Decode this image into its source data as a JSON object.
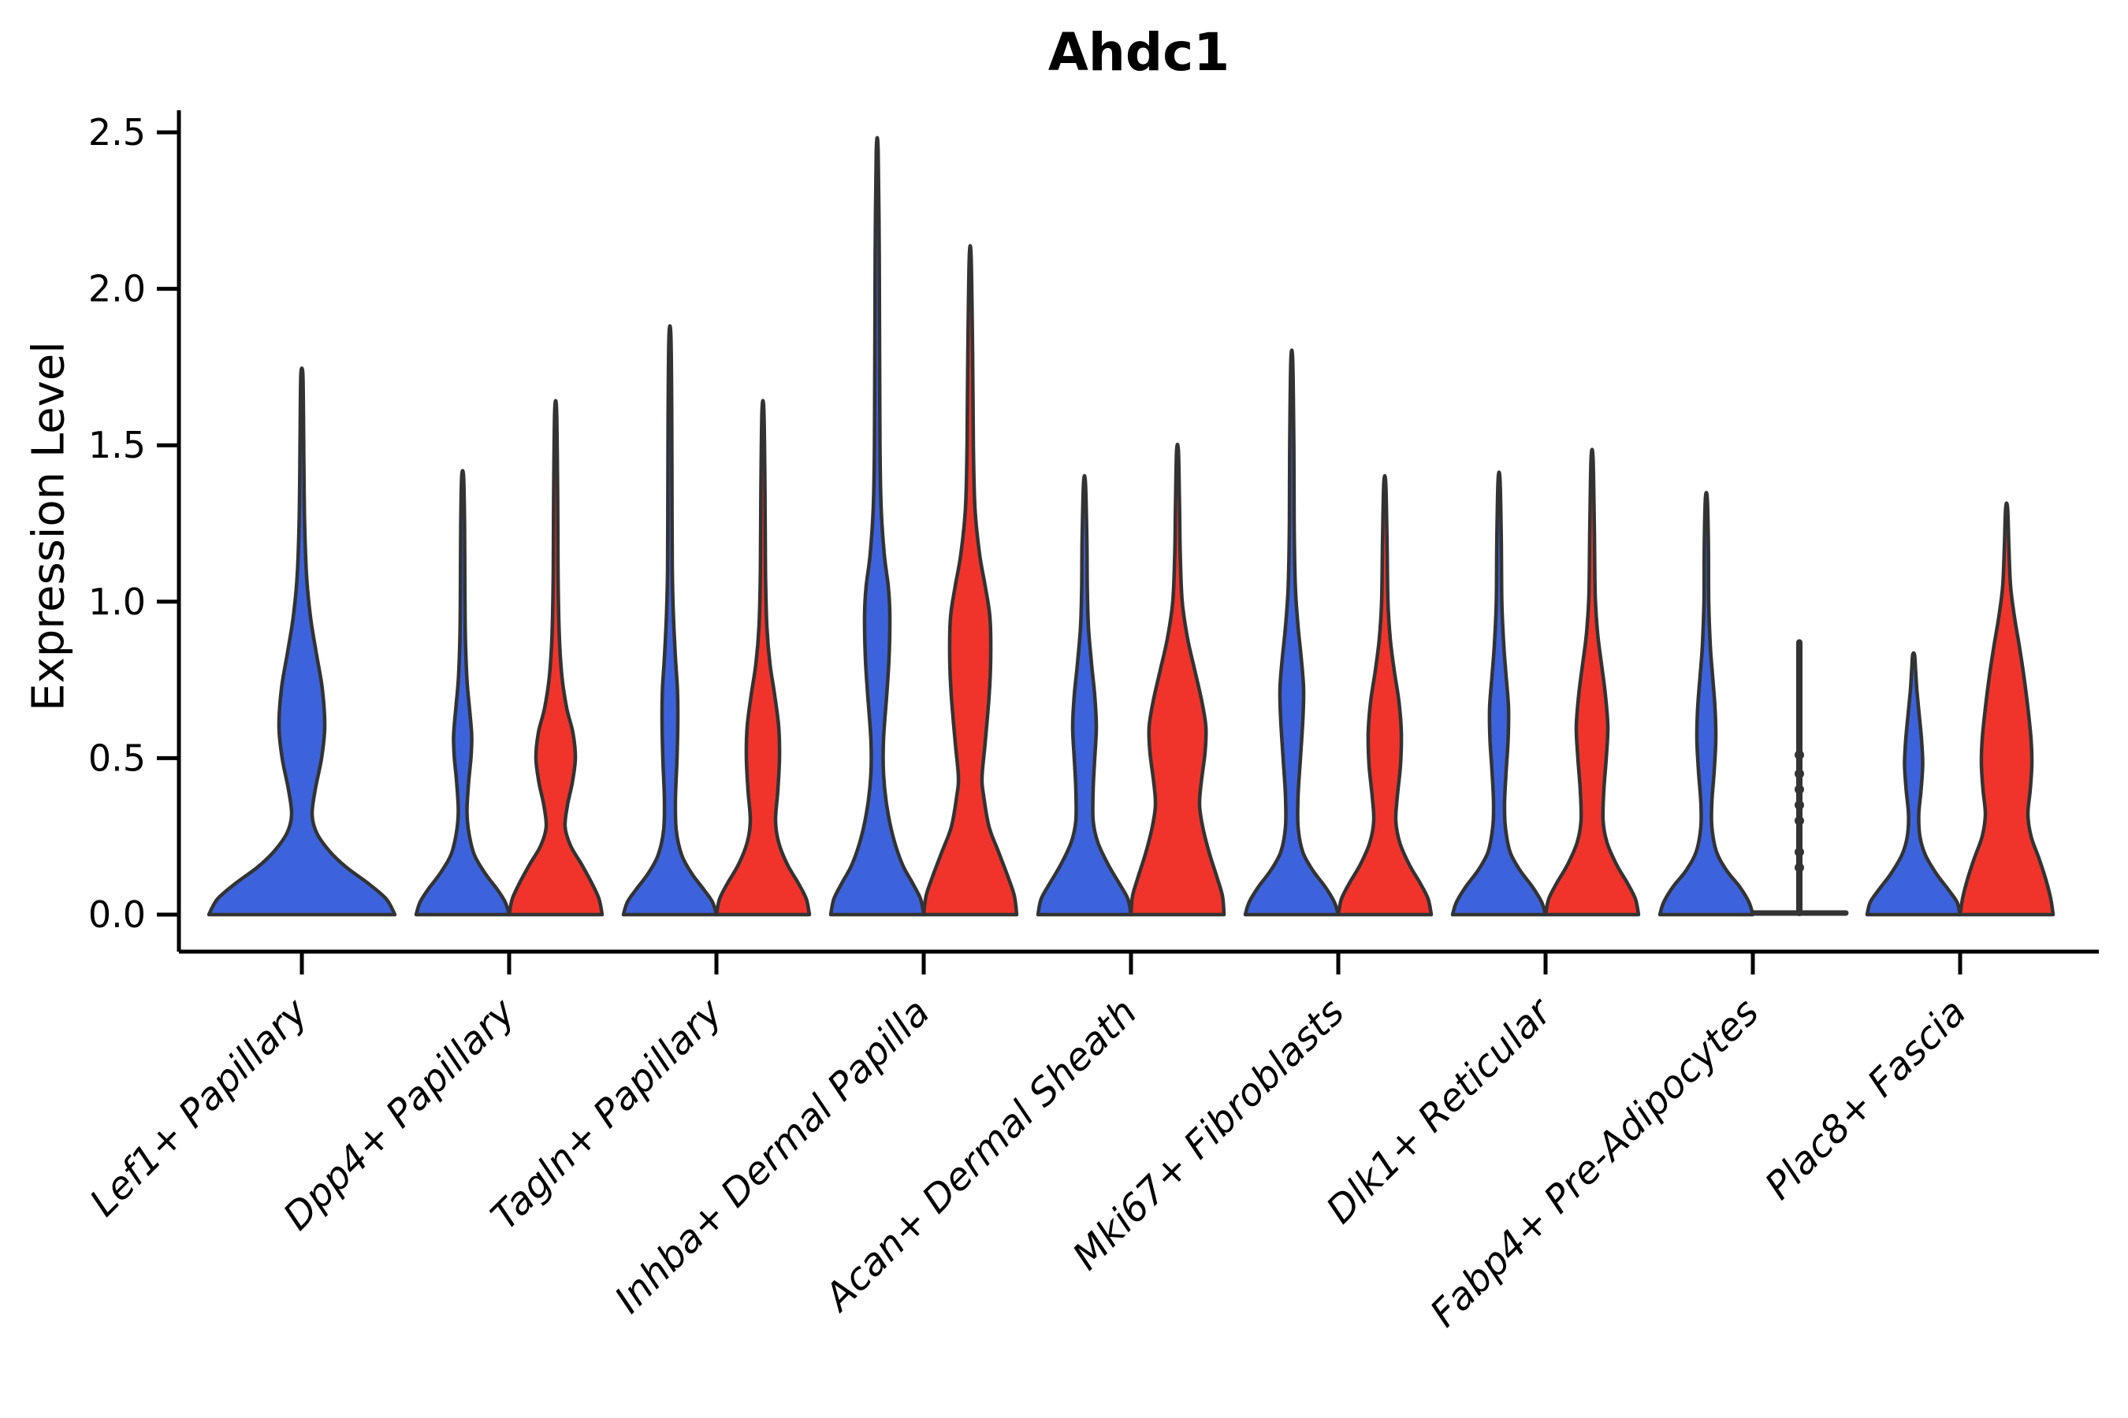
{
  "chart_data": {
    "type": "violin",
    "title": "Ahdc1",
    "ylabel": "Expression Level",
    "xlabel": "",
    "yticks": [
      0.0,
      0.5,
      1.0,
      1.5,
      2.0,
      2.5
    ],
    "ylim": [
      0,
      2.56
    ],
    "grid": false,
    "legend_position": "none",
    "categories": [
      "Lef1+ Papillary",
      "Dpp4+ Papillary",
      "Tagln+ Papillary",
      "Inhba+ Dermal Papilla",
      "Acan+ Dermal Sheath",
      "Mki67+ Fibroblasts",
      "Dlk1+ Reticular",
      "Fabp4+ Pre-Adipocytes",
      "Plac8+ Fascia"
    ],
    "colors": {
      "blue": "#3D63DC",
      "red": "#F1342B",
      "edge": "#333333",
      "axis": "#000000"
    },
    "series": [
      {
        "category_index": 0,
        "split": "blue",
        "side": "center",
        "max_value": 1.73,
        "profile": [
          [
            0,
            118
          ],
          [
            0.05,
            107
          ],
          [
            0.1,
            84
          ],
          [
            0.15,
            57
          ],
          [
            0.2,
            36
          ],
          [
            0.26,
            19
          ],
          [
            0.32,
            13
          ],
          [
            0.4,
            17
          ],
          [
            0.5,
            25
          ],
          [
            0.6,
            29
          ],
          [
            0.72,
            26
          ],
          [
            0.84,
            18
          ],
          [
            0.95,
            11
          ],
          [
            1.08,
            6
          ],
          [
            1.25,
            3.5
          ],
          [
            1.45,
            2.5
          ],
          [
            1.6,
            2
          ],
          [
            1.73,
            1.2
          ]
        ]
      },
      {
        "category_index": 1,
        "split": "blue",
        "side": "left",
        "max_value": 1.4,
        "profile": [
          [
            0,
            59
          ],
          [
            0.04,
            54
          ],
          [
            0.08,
            44
          ],
          [
            0.13,
            29
          ],
          [
            0.19,
            15
          ],
          [
            0.26,
            8
          ],
          [
            0.33,
            5.5
          ],
          [
            0.42,
            7.5
          ],
          [
            0.5,
            10.5
          ],
          [
            0.57,
            11.5
          ],
          [
            0.65,
            9
          ],
          [
            0.75,
            5.5
          ],
          [
            0.88,
            3.5
          ],
          [
            1.05,
            2.8
          ],
          [
            1.25,
            2.4
          ],
          [
            1.4,
            1.2
          ]
        ]
      },
      {
        "category_index": 1,
        "split": "red",
        "side": "right",
        "max_value": 1.61,
        "profile": [
          [
            0,
            59
          ],
          [
            0.05,
            55
          ],
          [
            0.1,
            46
          ],
          [
            0.16,
            33
          ],
          [
            0.22,
            19
          ],
          [
            0.28,
            12
          ],
          [
            0.35,
            15
          ],
          [
            0.42,
            21
          ],
          [
            0.5,
            25
          ],
          [
            0.58,
            22
          ],
          [
            0.66,
            14
          ],
          [
            0.76,
            8
          ],
          [
            0.9,
            4.5
          ],
          [
            1.1,
            3
          ],
          [
            1.35,
            2.5
          ],
          [
            1.61,
            1.2
          ]
        ]
      },
      {
        "category_index": 2,
        "split": "blue",
        "side": "left",
        "max_value": 1.85,
        "profile": [
          [
            0,
            59
          ],
          [
            0.04,
            54
          ],
          [
            0.08,
            43
          ],
          [
            0.13,
            28
          ],
          [
            0.19,
            15
          ],
          [
            0.27,
            8
          ],
          [
            0.37,
            7
          ],
          [
            0.5,
            9
          ],
          [
            0.62,
            10
          ],
          [
            0.72,
            9.5
          ],
          [
            0.82,
            7
          ],
          [
            0.95,
            4.5
          ],
          [
            1.1,
            3
          ],
          [
            1.35,
            2.6
          ],
          [
            1.6,
            2.3
          ],
          [
            1.85,
            1.2
          ]
        ]
      },
      {
        "category_index": 2,
        "split": "red",
        "side": "right",
        "max_value": 1.61,
        "profile": [
          [
            0,
            59
          ],
          [
            0.05,
            55
          ],
          [
            0.1,
            45
          ],
          [
            0.16,
            31
          ],
          [
            0.23,
            20
          ],
          [
            0.3,
            16
          ],
          [
            0.4,
            19
          ],
          [
            0.5,
            21
          ],
          [
            0.6,
            20
          ],
          [
            0.7,
            15
          ],
          [
            0.8,
            9
          ],
          [
            0.92,
            5
          ],
          [
            1.1,
            3.2
          ],
          [
            1.35,
            2.6
          ],
          [
            1.61,
            1.2
          ]
        ]
      },
      {
        "category_index": 3,
        "split": "blue",
        "side": "left",
        "max_value": 2.44,
        "profile": [
          [
            0,
            59
          ],
          [
            0.05,
            55
          ],
          [
            0.1,
            45
          ],
          [
            0.16,
            32
          ],
          [
            0.25,
            20
          ],
          [
            0.35,
            12
          ],
          [
            0.45,
            8
          ],
          [
            0.56,
            8
          ],
          [
            0.7,
            12
          ],
          [
            0.82,
            15
          ],
          [
            0.96,
            16
          ],
          [
            1.05,
            14
          ],
          [
            1.15,
            9
          ],
          [
            1.3,
            5
          ],
          [
            1.5,
            3.5
          ],
          [
            1.8,
            3
          ],
          [
            2.1,
            2.6
          ],
          [
            2.44,
            1.2
          ]
        ]
      },
      {
        "category_index": 3,
        "split": "red",
        "side": "right",
        "max_value": 2.1,
        "profile": [
          [
            0,
            59
          ],
          [
            0.06,
            56
          ],
          [
            0.12,
            48
          ],
          [
            0.2,
            36
          ],
          [
            0.28,
            24
          ],
          [
            0.38,
            17
          ],
          [
            0.44,
            15
          ],
          [
            0.55,
            19
          ],
          [
            0.7,
            24
          ],
          [
            0.82,
            26
          ],
          [
            0.95,
            25
          ],
          [
            1.05,
            19
          ],
          [
            1.15,
            12
          ],
          [
            1.3,
            6
          ],
          [
            1.5,
            4
          ],
          [
            1.8,
            3
          ],
          [
            2.1,
            1.2
          ]
        ]
      },
      {
        "category_index": 4,
        "split": "blue",
        "side": "left",
        "max_value": 1.38,
        "profile": [
          [
            0,
            59
          ],
          [
            0.05,
            55
          ],
          [
            0.1,
            44
          ],
          [
            0.16,
            30
          ],
          [
            0.23,
            17
          ],
          [
            0.3,
            11
          ],
          [
            0.4,
            11
          ],
          [
            0.5,
            13
          ],
          [
            0.6,
            15
          ],
          [
            0.7,
            13
          ],
          [
            0.8,
            9
          ],
          [
            0.92,
            5
          ],
          [
            1.05,
            3.5
          ],
          [
            1.2,
            3
          ],
          [
            1.38,
            1.2
          ]
        ]
      },
      {
        "category_index": 4,
        "split": "red",
        "side": "right",
        "max_value": 1.48,
        "profile": [
          [
            0,
            59
          ],
          [
            0.06,
            57
          ],
          [
            0.12,
            50
          ],
          [
            0.2,
            40
          ],
          [
            0.28,
            32
          ],
          [
            0.35,
            28
          ],
          [
            0.42,
            30
          ],
          [
            0.52,
            35
          ],
          [
            0.6,
            36
          ],
          [
            0.68,
            31
          ],
          [
            0.78,
            22
          ],
          [
            0.88,
            13
          ],
          [
            1.0,
            6
          ],
          [
            1.15,
            3.5
          ],
          [
            1.3,
            2.6
          ],
          [
            1.48,
            1.2
          ]
        ]
      },
      {
        "category_index": 5,
        "split": "blue",
        "side": "left",
        "max_value": 1.77,
        "profile": [
          [
            0,
            59
          ],
          [
            0.04,
            54
          ],
          [
            0.09,
            42
          ],
          [
            0.14,
            27
          ],
          [
            0.2,
            14
          ],
          [
            0.28,
            8
          ],
          [
            0.38,
            8
          ],
          [
            0.5,
            11
          ],
          [
            0.62,
            14
          ],
          [
            0.72,
            15
          ],
          [
            0.82,
            12
          ],
          [
            0.92,
            8
          ],
          [
            1.05,
            4.5
          ],
          [
            1.25,
            3
          ],
          [
            1.5,
            2.6
          ],
          [
            1.77,
            1.2
          ]
        ]
      },
      {
        "category_index": 5,
        "split": "red",
        "side": "right",
        "max_value": 1.38,
        "profile": [
          [
            0,
            59
          ],
          [
            0.05,
            55
          ],
          [
            0.1,
            45
          ],
          [
            0.16,
            31
          ],
          [
            0.23,
            19
          ],
          [
            0.3,
            14
          ],
          [
            0.38,
            16
          ],
          [
            0.48,
            20
          ],
          [
            0.58,
            21
          ],
          [
            0.68,
            18
          ],
          [
            0.78,
            12
          ],
          [
            0.88,
            7
          ],
          [
            1.0,
            4
          ],
          [
            1.2,
            2.8
          ],
          [
            1.38,
            1.2
          ]
        ]
      },
      {
        "category_index": 6,
        "split": "blue",
        "side": "left",
        "max_value": 1.39,
        "profile": [
          [
            0,
            59
          ],
          [
            0.04,
            54
          ],
          [
            0.09,
            42
          ],
          [
            0.14,
            27
          ],
          [
            0.2,
            14
          ],
          [
            0.28,
            8
          ],
          [
            0.36,
            7
          ],
          [
            0.46,
            9
          ],
          [
            0.56,
            11.5
          ],
          [
            0.66,
            12
          ],
          [
            0.76,
            9
          ],
          [
            0.86,
            6
          ],
          [
            1.0,
            3.5
          ],
          [
            1.2,
            2.8
          ],
          [
            1.39,
            1.2
          ]
        ]
      },
      {
        "category_index": 6,
        "split": "red",
        "side": "right",
        "max_value": 1.46,
        "profile": [
          [
            0,
            59
          ],
          [
            0.05,
            55
          ],
          [
            0.1,
            45
          ],
          [
            0.16,
            31
          ],
          [
            0.23,
            19
          ],
          [
            0.3,
            14
          ],
          [
            0.4,
            15
          ],
          [
            0.5,
            18
          ],
          [
            0.6,
            20
          ],
          [
            0.7,
            17
          ],
          [
            0.8,
            12
          ],
          [
            0.9,
            7
          ],
          [
            1.02,
            4
          ],
          [
            1.25,
            2.8
          ],
          [
            1.46,
            1.2
          ]
        ]
      },
      {
        "category_index": 7,
        "split": "blue",
        "side": "left",
        "max_value": 1.33,
        "profile": [
          [
            0,
            59
          ],
          [
            0.04,
            54
          ],
          [
            0.09,
            42
          ],
          [
            0.14,
            26
          ],
          [
            0.2,
            13
          ],
          [
            0.28,
            7
          ],
          [
            0.36,
            7
          ],
          [
            0.46,
            10
          ],
          [
            0.56,
            12
          ],
          [
            0.66,
            11
          ],
          [
            0.76,
            8
          ],
          [
            0.86,
            5
          ],
          [
            1.0,
            3
          ],
          [
            1.18,
            2.6
          ],
          [
            1.33,
            1.2
          ]
        ]
      },
      {
        "category_index": 8,
        "split": "blue",
        "side": "left",
        "max_value": 0.83,
        "profile": [
          [
            0,
            59
          ],
          [
            0.04,
            55
          ],
          [
            0.08,
            44
          ],
          [
            0.13,
            29
          ],
          [
            0.19,
            15
          ],
          [
            0.25,
            8
          ],
          [
            0.32,
            6.5
          ],
          [
            0.4,
            9.5
          ],
          [
            0.48,
            11.5
          ],
          [
            0.56,
            10
          ],
          [
            0.64,
            7
          ],
          [
            0.72,
            4
          ],
          [
            0.78,
            2.5
          ],
          [
            0.83,
            1.2
          ]
        ]
      },
      {
        "category_index": 8,
        "split": "red",
        "side": "right",
        "max_value": 1.3,
        "profile": [
          [
            0,
            59
          ],
          [
            0.05,
            56
          ],
          [
            0.11,
            50
          ],
          [
            0.18,
            41
          ],
          [
            0.25,
            31
          ],
          [
            0.32,
            27
          ],
          [
            0.4,
            30
          ],
          [
            0.48,
            32
          ],
          [
            0.56,
            31
          ],
          [
            0.66,
            27
          ],
          [
            0.76,
            22
          ],
          [
            0.86,
            16
          ],
          [
            0.95,
            10
          ],
          [
            1.05,
            5
          ],
          [
            1.18,
            2.8
          ],
          [
            1.3,
            1.2
          ]
        ]
      }
    ],
    "degenerate_series": {
      "category_index": 7,
      "split": "red",
      "side": "right",
      "line_top": 0.87,
      "jitter_points": [
        0.15,
        0.2,
        0.3,
        0.35,
        0.4,
        0.45,
        0.51
      ],
      "base_halfwidth": 59
    }
  }
}
